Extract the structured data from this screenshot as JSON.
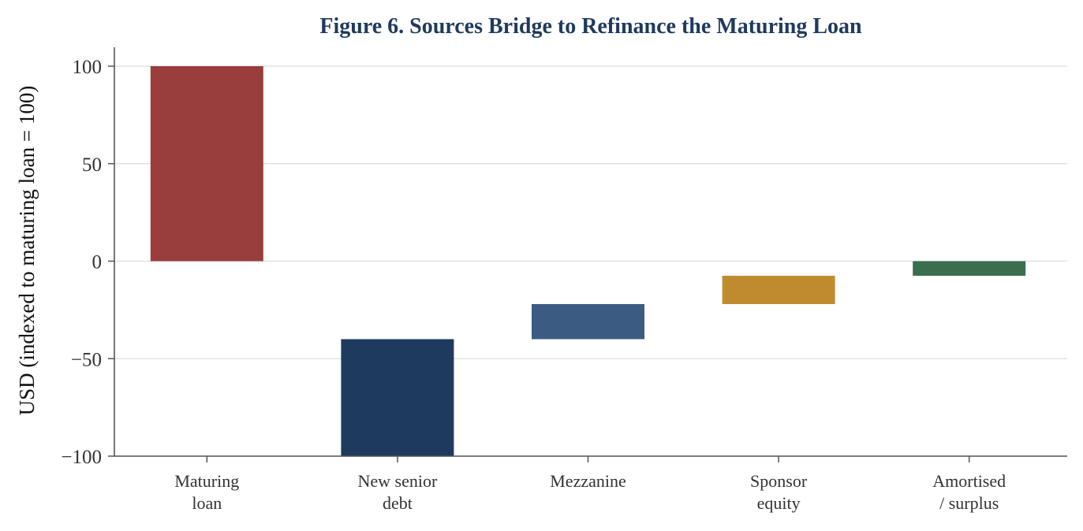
{
  "colors": {
    "title": "#1f3a5f",
    "axis": "#555555",
    "grid": "#dddddd",
    "tick_text": "#333333"
  },
  "chart_data": {
    "type": "bar",
    "subtype": "waterfall",
    "title": "Figure 6. Sources Bridge to Refinance the Maturing Loan",
    "xlabel": "",
    "ylabel": "USD (indexed to maturing loan = 100)",
    "ylim": [
      -100,
      110
    ],
    "yticks": [
      100,
      50,
      0,
      -50,
      -100
    ],
    "ytick_labels": [
      "100",
      "50",
      "0",
      "−50",
      "−100"
    ],
    "grid": true,
    "categories": [
      [
        "Maturing",
        "loan"
      ],
      [
        "New senior",
        "debt"
      ],
      [
        "Mezzanine"
      ],
      [
        "Sponsor",
        "equity"
      ],
      [
        "Amortised",
        "/ surplus"
      ]
    ],
    "bars": [
      {
        "bottom": 0,
        "top": 100,
        "value": 100,
        "color": "#993d3d"
      },
      {
        "bottom": -100,
        "top": -40,
        "value": -60,
        "color": "#1f3a5f"
      },
      {
        "bottom": -40,
        "top": -22,
        "value": -18,
        "color": "#3b5b82"
      },
      {
        "bottom": -22,
        "top": -7.5,
        "value": -14.5,
        "color": "#c08b2e"
      },
      {
        "bottom": -7.5,
        "top": 0,
        "value": -7.5,
        "color": "#3a6e4e"
      }
    ]
  }
}
